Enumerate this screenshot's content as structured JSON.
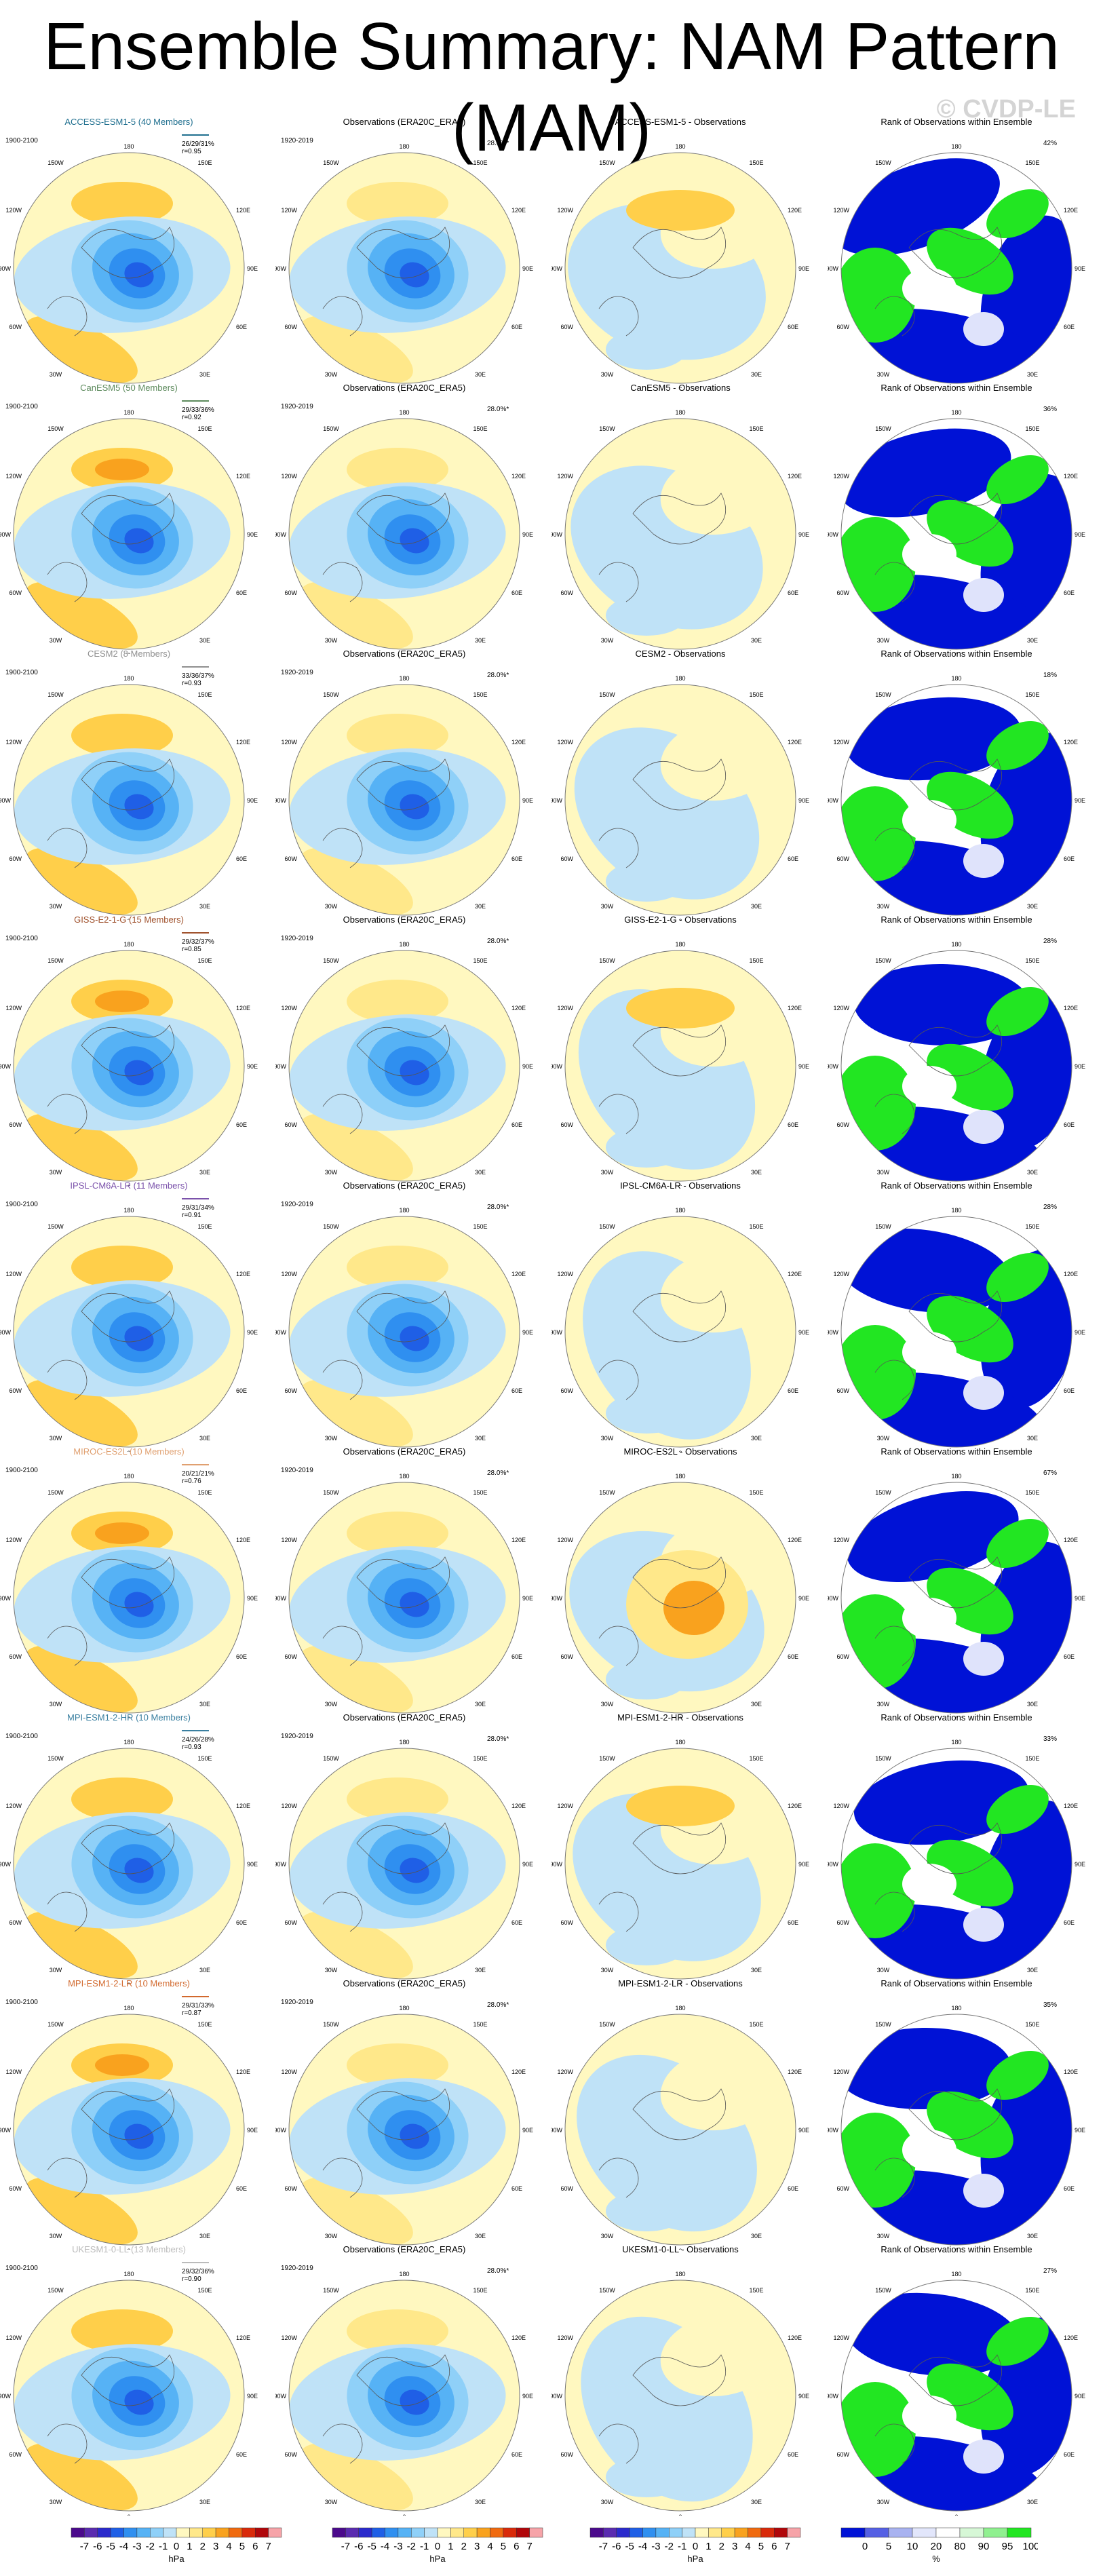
{
  "title": "Ensemble Summary: NAM Pattern (MAM)",
  "watermark": "© CVDP-LE",
  "column_titles": {
    "obs": "Observations (ERA20C_ERA5)",
    "rank": "Rank of Observations within Ensemble"
  },
  "obs_period": "1920-2019",
  "obs_pct": "28.0%*",
  "model_period": "1900-2100",
  "lon_labels": [
    "180",
    "150W",
    "150E",
    "120W",
    "120E",
    "90W",
    "90E",
    "60W",
    "60E",
    "30W",
    "30E",
    "0"
  ],
  "rows": [
    {
      "model": "ACCESS-ESM1-5 (40 Members)",
      "diff": "ACCESS-ESM1-5 - Observations",
      "metric1": "26/29/31%",
      "metric2": "r=0.95",
      "rank_pct": "42%",
      "color": "#1f6f8f"
    },
    {
      "model": "CanESM5 (50 Members)",
      "diff": "CanESM5 - Observations",
      "metric1": "29/33/36%",
      "metric2": "r=0.92",
      "rank_pct": "36%",
      "color": "#5c8a5c"
    },
    {
      "model": "CESM2 (8 Members)",
      "diff": "CESM2 - Observations",
      "metric1": "33/36/37%",
      "metric2": "r=0.93",
      "rank_pct": "18%",
      "color": "#909090"
    },
    {
      "model": "GISS-E2-1-G (15 Members)",
      "diff": "GISS-E2-1-G - Observations",
      "metric1": "29/32/37%",
      "metric2": "r=0.85",
      "rank_pct": "28%",
      "color": "#a0522d"
    },
    {
      "model": "IPSL-CM6A-LR (11 Members)",
      "diff": "IPSL-CM6A-LR - Observations",
      "metric1": "29/31/34%",
      "metric2": "r=0.91",
      "rank_pct": "28%",
      "color": "#7b52ab"
    },
    {
      "model": "MIROC-ES2L (10 Members)",
      "diff": "MIROC-ES2L - Observations",
      "metric1": "20/21/21%",
      "metric2": "r=0.76",
      "rank_pct": "67%",
      "color": "#e0a070"
    },
    {
      "model": "MPI-ESM1-2-HR (10 Members)",
      "diff": "MPI-ESM1-2-HR - Observations",
      "metric1": "24/26/28%",
      "metric2": "r=0.93",
      "rank_pct": "33%",
      "color": "#3a7fa0"
    },
    {
      "model": "MPI-ESM1-2-LR (10 Members)",
      "diff": "MPI-ESM1-2-LR - Observations",
      "metric1": "29/31/33%",
      "metric2": "r=0.87",
      "rank_pct": "35%",
      "color": "#d2692d"
    },
    {
      "model": "UKESM1-0-LL (13 Members)",
      "diff": "UKESM1-0-LL - Observations",
      "metric1": "29/32/36%",
      "metric2": "r=0.90",
      "rank_pct": "27%",
      "color": "#bbbbbb"
    }
  ],
  "colorbar_hpa": {
    "labels": [
      "-7",
      "-6",
      "-5",
      "-4",
      "-3",
      "-2",
      "-1",
      "0",
      "1",
      "2",
      "3",
      "4",
      "5",
      "6",
      "7"
    ],
    "unit": "hPa",
    "colors": [
      "#4b0a8c",
      "#5a2bb0",
      "#2a2acc",
      "#1f5fe6",
      "#2f8ff0",
      "#56b2f5",
      "#8fd0f8",
      "#bfe2f7",
      "#fff8c0",
      "#ffe88a",
      "#ffcf4a",
      "#f9a21e",
      "#f06a0f",
      "#d92a0a",
      "#b0060a",
      "#f6a3a8"
    ]
  },
  "colorbar_rank": {
    "labels": [
      "0",
      "5",
      "10",
      "20",
      "80",
      "90",
      "95",
      "100"
    ],
    "unit": "%",
    "colors": [
      "#0012d6",
      "#5560e4",
      "#a8b2f0",
      "#e2e6fb",
      "#ffffff",
      "#d6f7d6",
      "#8ff08f",
      "#22e622"
    ]
  }
}
